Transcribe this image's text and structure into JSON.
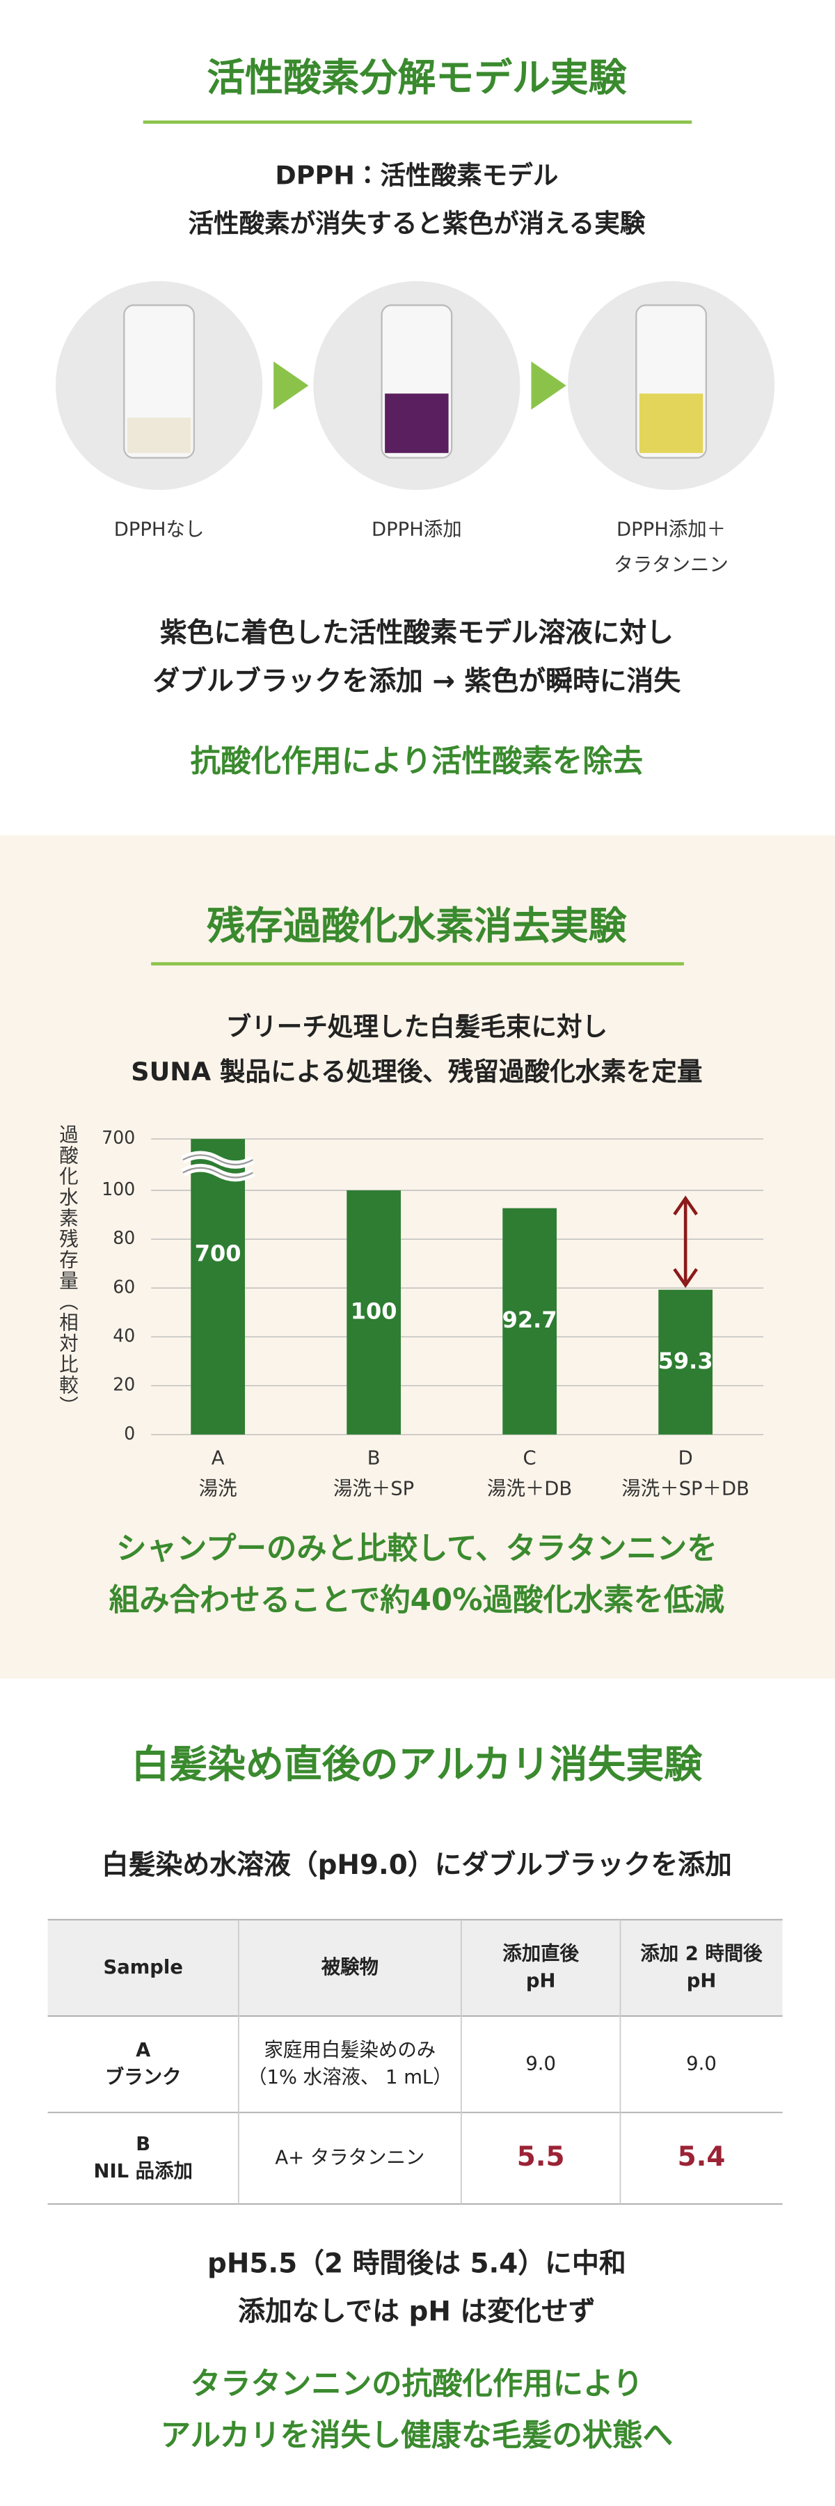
{
  "section1": {
    "title": "活性酸素分解モデル実験",
    "subtitle": [
      "DPPH：活性酸素モデル",
      "活性酸素が消失すると紫色が消える実験"
    ],
    "steps": [
      [
        "DPPHなし"
      ],
      [
        "DPPH添加"
      ],
      [
        "DPPH添加＋",
        "タラタンニン"
      ]
    ],
    "description": [
      "紫色に着色した活性酸素モデル溶液に対し",
      "ダブルブラックを添加 → 紫色が瞬時に消失"
    ],
    "conclusion": "抗酸化作用により活性酸素を除去"
  },
  "section2": {
    "title": "残存過酸化水素消去実験",
    "subtitle": [
      "ブリーチ処理した白髪毛束に対し",
      "SUNA 製品による処理後、残留過酸化水素を定量"
    ],
    "chart": {
      "type": "bar",
      "y_label": "過酸化水素残存量（相対比較）",
      "categories": [
        "A",
        "B",
        "C",
        "D"
      ],
      "category_sublabels": [
        "湯洗",
        "湯洗＋SP",
        "湯洗＋DB",
        "湯洗＋SP＋DB"
      ],
      "values": [
        700,
        100,
        92.7,
        59.3
      ],
      "color": "#2e7d32",
      "ylim": [
        0,
        700
      ],
      "yticks": [
        0,
        20,
        40,
        60,
        80,
        100,
        700
      ],
      "grid": true
    },
    "conclusion": [
      "シャンプーのみと比較して、タラタンニンを",
      "組み合わせることで約40%過酸化水素を低減"
    ]
  },
  "section3": {
    "title": "白髪染め直後のアルカリ消失実験",
    "subtitle": "白髪染め水溶液（pH9.0）にダブルブラックを添加",
    "table": {
      "header": [
        [
          "Sample"
        ],
        [
          "被験物"
        ],
        [
          "添加直後",
          "pH"
        ],
        [
          "添加 2 時間後",
          "pH"
        ]
      ],
      "rows": [
        [
          [
            "A",
            "ブランク"
          ],
          [
            "家庭用白髪染めのみ",
            "（1% 水溶液、 1 mL）"
          ],
          [
            "9.0"
          ],
          [
            "9.0"
          ]
        ],
        [
          [
            "B",
            "NIL 品添加"
          ],
          [
            "A+ タラタンニン"
          ],
          [
            "5.5"
          ],
          [
            "5.4"
          ]
        ]
      ]
    },
    "notes": [
      "pH5.5（2 時間後は 5.4）に中和",
      "添加なしでは pH は変化せず"
    ],
    "conclusion": [
      "タラタンニンの抗酸化作用により",
      "アルカリを消失し健康な毛髪の状態へ"
    ]
  }
}
